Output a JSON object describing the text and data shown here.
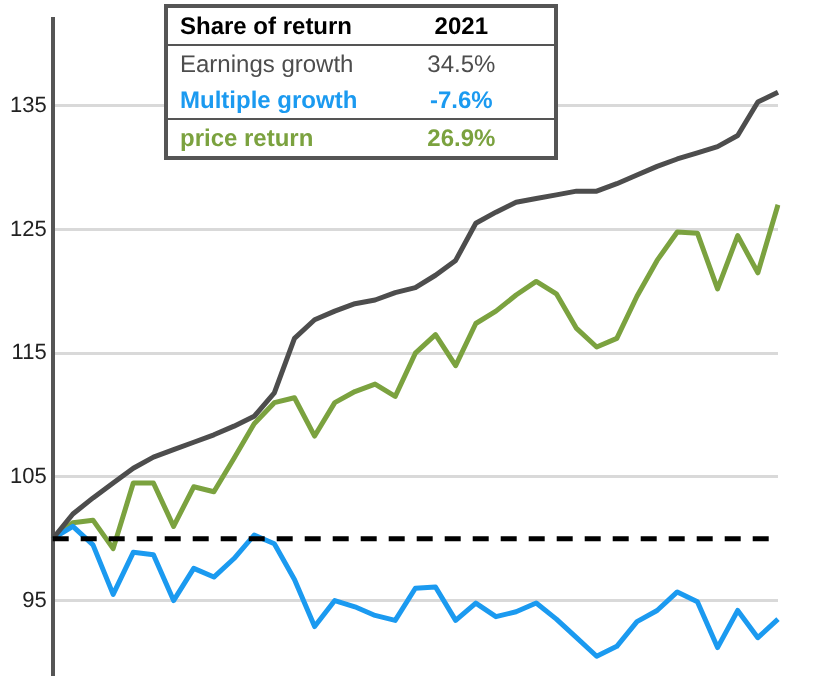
{
  "chart_data": {
    "type": "line",
    "categories": [
      null,
      null,
      null,
      null,
      null,
      null,
      null,
      null,
      null,
      null,
      null,
      null,
      null,
      null,
      null,
      null,
      null,
      null,
      null,
      null,
      null,
      null,
      null,
      null,
      null,
      null,
      null,
      null,
      null,
      null,
      null,
      null,
      null,
      null,
      null,
      null,
      null
    ],
    "series": [
      {
        "name": "Earnings growth",
        "color": "#4d4d4d",
        "values": [
          100,
          102,
          103.3,
          104.5,
          105.7,
          106.6,
          107.2,
          107.8,
          108.4,
          109.1,
          109.9,
          111.8,
          116.2,
          117.7,
          118.4,
          119,
          119.3,
          119.9,
          120.3,
          121.3,
          122.5,
          125.5,
          126.4,
          127.2,
          127.5,
          127.8,
          128.1,
          128.1,
          128.7,
          129.4,
          130.1,
          130.7,
          131.2,
          131.7,
          132.6,
          135.3,
          136.1
        ]
      },
      {
        "name": "Multiple growth",
        "color": "#1b9af0",
        "values": [
          100,
          101,
          99.5,
          95.5,
          98.9,
          98.7,
          95,
          97.6,
          96.9,
          98.4,
          100.3,
          99.6,
          96.7,
          92.9,
          95,
          94.5,
          93.8,
          93.4,
          96,
          96.1,
          93.4,
          94.8,
          93.7,
          94.1,
          94.8,
          93.5,
          92,
          90.5,
          91.3,
          93.3,
          94.2,
          95.7,
          94.9,
          91.2,
          94.2,
          92,
          93.5
        ]
      },
      {
        "name": "price return",
        "color": "#7ba23f",
        "values": [
          100,
          101.3,
          101.5,
          99.2,
          104.5,
          104.5,
          101,
          104.2,
          103.8,
          106.5,
          109.3,
          111,
          111.4,
          108.3,
          111,
          111.9,
          112.5,
          111.5,
          115,
          116.5,
          114,
          117.4,
          118.4,
          119.7,
          120.8,
          119.8,
          117,
          115.5,
          116.2,
          119.6,
          122.5,
          124.8,
          124.7,
          120.2,
          124.5,
          121.5,
          127
        ]
      }
    ],
    "ylim": [
      89,
      142
    ],
    "yticks": [
      95,
      105,
      115,
      125,
      135
    ],
    "grid": "y",
    "tick_labels": "y",
    "marker": "none",
    "line_style": "solid",
    "legend": "top",
    "legend_title": "Share of return",
    "annotations": [
      "2021",
      "34.5%",
      "-7.6%",
      "26.9%"
    ],
    "ref_lines": [
      {
        "axis": "y",
        "value": 100,
        "color": "#000000",
        "line_style": "dashed"
      }
    ]
  }
}
